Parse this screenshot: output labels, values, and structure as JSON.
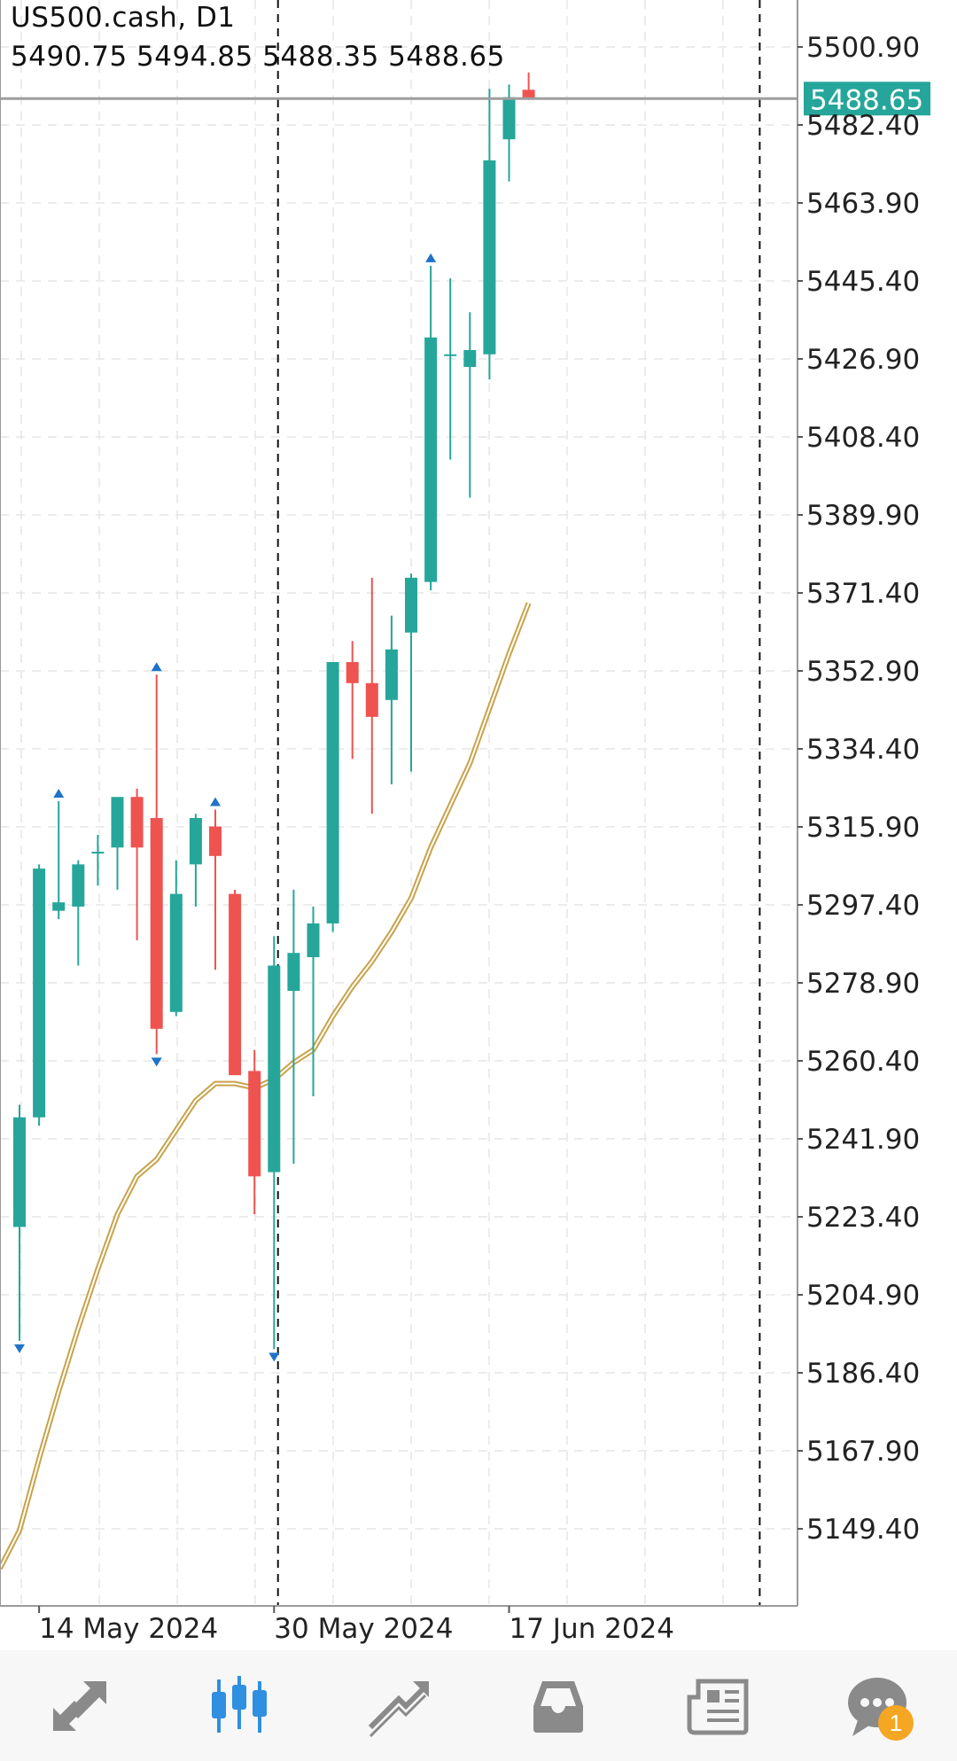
{
  "header": {
    "symbol_timeframe": "US500.cash, D1",
    "ohlc": "5490.75 5494.85 5488.35 5488.65"
  },
  "colors": {
    "bull": "#26a69a",
    "bear": "#ef5350",
    "ma": "#c9a24a",
    "price_line": "#9e9e9e",
    "price_label_bg": "#26a69a",
    "fractal": "#1e73c8",
    "accent": "#2f8fe0",
    "icon_gray": "#8a8a8a"
  },
  "chart_data": {
    "type": "candlestick",
    "symbol": "US500.cash",
    "timeframe": "D1",
    "current_price": 5488.65,
    "ylim": [
      5130,
      5507
    ],
    "y_ticks": [
      5149.4,
      5167.9,
      5186.4,
      5204.9,
      5223.4,
      5241.9,
      5260.4,
      5278.9,
      5297.4,
      5315.9,
      5334.4,
      5352.9,
      5371.4,
      5389.9,
      5408.4,
      5426.9,
      5445.4,
      5463.9,
      5482.4,
      5500.9
    ],
    "y_tick_labels": [
      "5149.40",
      "5167.90",
      "5186.40",
      "5204.90",
      "5223.40",
      "5241.90",
      "5260.40",
      "5278.90",
      "5297.40",
      "5315.90",
      "5334.40",
      "5352.90",
      "5371.40",
      "5389.90",
      "5408.40",
      "5426.90",
      "5445.40",
      "5463.90",
      "5482.40",
      "5500.90"
    ],
    "x_tick_labels": [
      {
        "label": "14 May 2024",
        "index": 1
      },
      {
        "label": "30 May 2024",
        "index": 13
      },
      {
        "label": "17 Jun 2024",
        "index": 25
      }
    ],
    "grid": true,
    "candles": [
      {
        "o": 5221.0,
        "h": 5250.0,
        "l": 5194.0,
        "c": 5247.0
      },
      {
        "o": 5247.0,
        "h": 5307.0,
        "l": 5245.0,
        "c": 5306.0
      },
      {
        "o": 5296.0,
        "h": 5322.0,
        "l": 5294.0,
        "c": 5298.0
      },
      {
        "o": 5297.0,
        "h": 5308.0,
        "l": 5283.0,
        "c": 5307.0
      },
      {
        "o": 5310.0,
        "h": 5314.0,
        "l": 5302.0,
        "c": 5310.0
      },
      {
        "o": 5311.0,
        "h": 5320.0,
        "l": 5301.0,
        "c": 5323.0
      },
      {
        "o": 5323.0,
        "h": 5325.0,
        "l": 5289.0,
        "c": 5311.0
      },
      {
        "o": 5318.0,
        "h": 5352.0,
        "l": 5262.0,
        "c": 5268.0
      },
      {
        "o": 5272.0,
        "h": 5308.0,
        "l": 5271.0,
        "c": 5300.0
      },
      {
        "o": 5307.0,
        "h": 5319.0,
        "l": 5297.0,
        "c": 5318.0
      },
      {
        "o": 5316.0,
        "h": 5320.0,
        "l": 5282.0,
        "c": 5309.0
      },
      {
        "o": 5300.0,
        "h": 5301.0,
        "l": 5257.0,
        "c": 5257.0
      },
      {
        "o": 5258.0,
        "h": 5263.0,
        "l": 5224.0,
        "c": 5233.0
      },
      {
        "o": 5234.0,
        "h": 5290.0,
        "l": 5192.0,
        "c": 5283.0
      },
      {
        "o": 5277.0,
        "h": 5301.0,
        "l": 5236.0,
        "c": 5286.0
      },
      {
        "o": 5285.0,
        "h": 5297.0,
        "l": 5252.0,
        "c": 5293.0
      },
      {
        "o": 5293.0,
        "h": 5354.0,
        "l": 5291.0,
        "c": 5355.0
      },
      {
        "o": 5355.0,
        "h": 5360.0,
        "l": 5332.0,
        "c": 5350.0
      },
      {
        "o": 5350.0,
        "h": 5375.0,
        "l": 5319.0,
        "c": 5342.0
      },
      {
        "o": 5346.0,
        "h": 5366.0,
        "l": 5326.0,
        "c": 5358.0
      },
      {
        "o": 5362.0,
        "h": 5376.0,
        "l": 5329.0,
        "c": 5375.0
      },
      {
        "o": 5374.0,
        "h": 5449.0,
        "l": 5372.0,
        "c": 5432.0
      },
      {
        "o": 5428.0,
        "h": 5446.0,
        "l": 5403.0,
        "c": 5428.0
      },
      {
        "o": 5425.0,
        "h": 5438.0,
        "l": 5394.0,
        "c": 5429.0
      },
      {
        "o": 5428.0,
        "h": 5491.0,
        "l": 5422.0,
        "c": 5474.0
      },
      {
        "o": 5479.0,
        "h": 5492.0,
        "l": 5469.0,
        "c": 5489.0
      },
      {
        "o": 5490.75,
        "h": 5494.85,
        "l": 5488.35,
        "c": 5488.65
      }
    ],
    "fractals_up": [
      {
        "index": 2,
        "value": 5322.0
      },
      {
        "index": 7,
        "value": 5352.0
      },
      {
        "index": 10,
        "value": 5320.0
      },
      {
        "index": 21,
        "value": 5449.0
      }
    ],
    "fractals_down": [
      {
        "index": 0,
        "value": 5194.0
      },
      {
        "index": 7,
        "value": 5262.0
      },
      {
        "index": 13,
        "value": 5192.0
      }
    ],
    "moving_average": {
      "name": "",
      "points": [
        {
          "index": -1,
          "value": 5140.0
        },
        {
          "index": 0,
          "value": 5149.0
        },
        {
          "index": 1,
          "value": 5166.0
        },
        {
          "index": 2,
          "value": 5182.0
        },
        {
          "index": 3,
          "value": 5197.0
        },
        {
          "index": 4,
          "value": 5211.0
        },
        {
          "index": 5,
          "value": 5224.0
        },
        {
          "index": 6,
          "value": 5233.0
        },
        {
          "index": 7,
          "value": 5237.0
        },
        {
          "index": 8,
          "value": 5244.0
        },
        {
          "index": 9,
          "value": 5251.0
        },
        {
          "index": 10,
          "value": 5255.0
        },
        {
          "index": 11,
          "value": 5255.0
        },
        {
          "index": 12,
          "value": 5254.0
        },
        {
          "index": 13,
          "value": 5256.0
        },
        {
          "index": 14,
          "value": 5260.0
        },
        {
          "index": 15,
          "value": 5263.0
        },
        {
          "index": 16,
          "value": 5271.0
        },
        {
          "index": 17,
          "value": 5278.0
        },
        {
          "index": 18,
          "value": 5284.0
        },
        {
          "index": 19,
          "value": 5291.0
        },
        {
          "index": 20,
          "value": 5299.0
        },
        {
          "index": 21,
          "value": 5311.0
        },
        {
          "index": 22,
          "value": 5321.0
        },
        {
          "index": 23,
          "value": 5331.0
        },
        {
          "index": 24,
          "value": 5344.0
        },
        {
          "index": 25,
          "value": 5357.0
        },
        {
          "index": 26,
          "value": 5369.0
        }
      ]
    },
    "period_separators": [
      13.2,
      37.8
    ]
  },
  "nav": {
    "items": [
      {
        "name": "quotes-icon"
      },
      {
        "name": "chart-icon"
      },
      {
        "name": "trade-icon"
      },
      {
        "name": "history-icon"
      },
      {
        "name": "news-icon"
      },
      {
        "name": "messages-icon"
      }
    ],
    "messages_badge": "1"
  }
}
